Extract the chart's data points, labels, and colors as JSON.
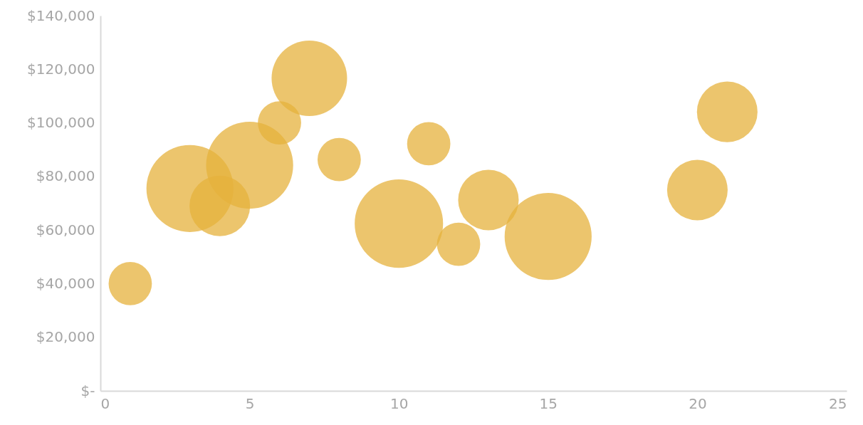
{
  "chart_data": {
    "type": "bubble",
    "x": [
      1,
      3,
      4,
      5,
      6,
      7,
      8,
      10,
      11,
      12,
      13,
      15,
      20,
      21
    ],
    "series": [
      {
        "color": "#e6b23c",
        "values": [
          40000,
          75500,
          69000,
          84200,
          100000,
          116600,
          86300,
          62400,
          92200,
          54700,
          71200,
          57600,
          74900,
          104100
        ],
        "sizes": [
          0.24,
          0.97,
          0.47,
          0.97,
          0.24,
          0.73,
          0.24,
          1,
          0.24,
          0.24,
          0.47,
          0.97,
          0.47,
          0.47
        ]
      }
    ],
    "xlim": [
      0,
      25
    ],
    "xticks": [
      0,
      5,
      10,
      15,
      20,
      25
    ],
    "ylim": [
      0,
      140000
    ],
    "yticks": [
      {
        "value": 0,
        "label": "$-"
      },
      {
        "value": 20000,
        "label": "$20,000"
      },
      {
        "value": 40000,
        "label": "$40,000"
      },
      {
        "value": 60000,
        "label": "$60,000"
      },
      {
        "value": 80000,
        "label": "$80,000"
      },
      {
        "value": 100000,
        "label": "$100,000"
      },
      {
        "value": 120000,
        "label": "$120,000"
      },
      {
        "value": 140000,
        "label": "$140,000"
      }
    ],
    "grid": false,
    "legend": false
  }
}
